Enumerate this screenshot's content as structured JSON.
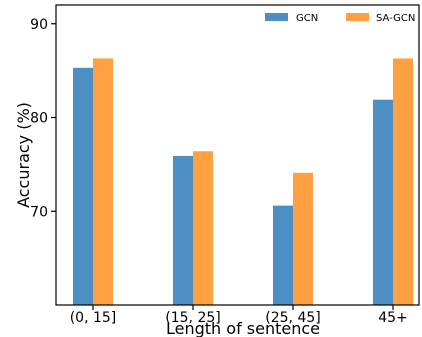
{
  "chart_data": {
    "type": "bar",
    "categories": [
      "(0, 15]",
      "(15, 25]",
      "(25, 45]",
      "45+"
    ],
    "series": [
      {
        "name": "GCN",
        "values": [
          85.3,
          75.9,
          70.6,
          81.9
        ],
        "color": "#4d8fc3"
      },
      {
        "name": "SA-GCN",
        "values": [
          86.3,
          76.4,
          74.1,
          86.3
        ],
        "color": "#ffa043"
      }
    ],
    "xlabel": "Length of sentence",
    "ylabel": "Accuracy (%)",
    "ylim": [
      60,
      92
    ],
    "yticks": [
      70,
      80,
      90
    ],
    "grid": false,
    "legend_position": "top-right"
  }
}
